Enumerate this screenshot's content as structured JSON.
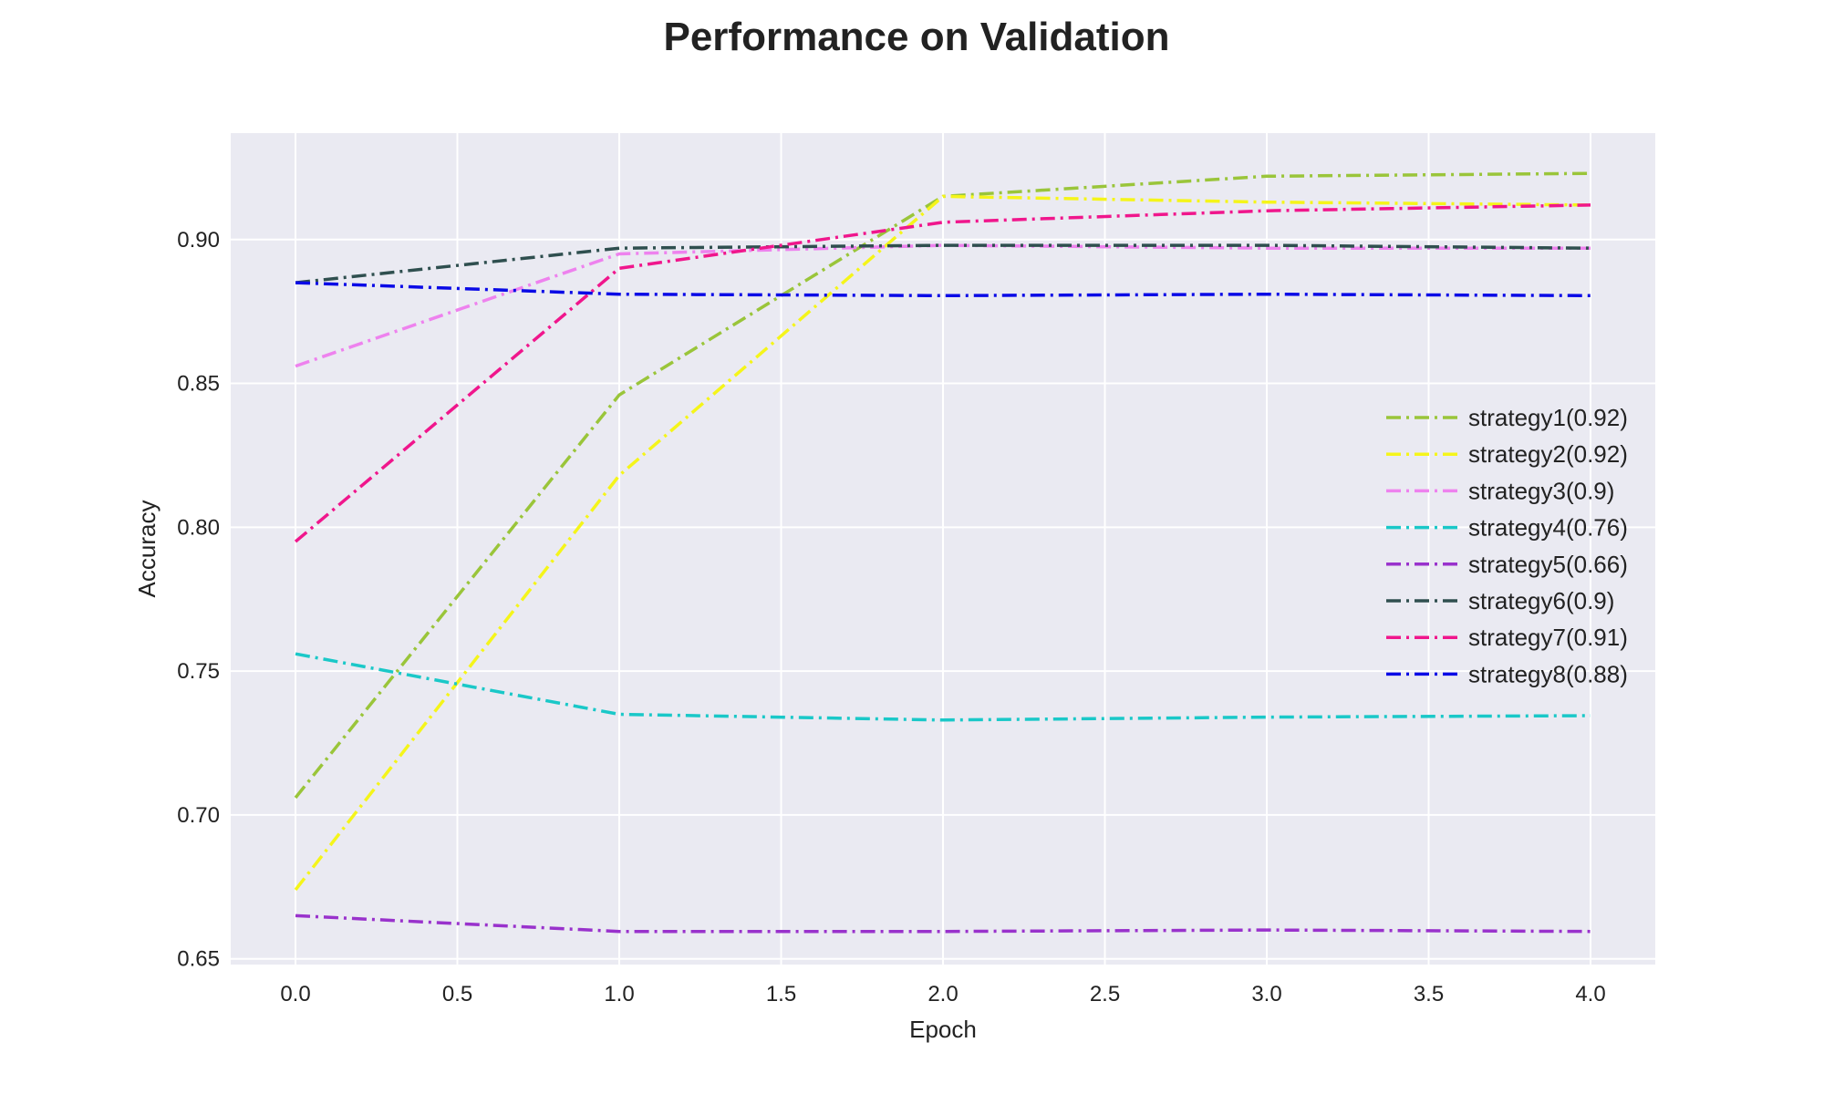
{
  "chart_data": {
    "type": "line",
    "title": "Performance on Validation",
    "xlabel": "Epoch",
    "ylabel": "Accuracy",
    "xlim": [
      -0.2,
      4.2
    ],
    "ylim": [
      0.648,
      0.937
    ],
    "x_ticks": [
      0.0,
      0.5,
      1.0,
      1.5,
      2.0,
      2.5,
      3.0,
      3.5,
      4.0
    ],
    "x_tick_labels": [
      "0.0",
      "0.5",
      "1.0",
      "1.5",
      "2.0",
      "2.5",
      "3.0",
      "3.5",
      "4.0"
    ],
    "y_ticks": [
      0.65,
      0.7,
      0.75,
      0.8,
      0.85,
      0.9
    ],
    "y_tick_labels": [
      "0.65",
      "0.70",
      "0.75",
      "0.80",
      "0.85",
      "0.90"
    ],
    "grid": true,
    "legend_position": "center-right",
    "line_style": "dash-dot",
    "background_color": "#eaeaf2",
    "grid_color": "#ffffff",
    "x": [
      0,
      1,
      2,
      3,
      4
    ],
    "series": [
      {
        "name": "strategy1(0.92)",
        "color": "#9ac53a",
        "values": [
          0.706,
          0.846,
          0.915,
          0.922,
          0.923
        ]
      },
      {
        "name": "strategy2(0.92)",
        "color": "#f5f51a",
        "values": [
          0.674,
          0.818,
          0.915,
          0.913,
          0.912
        ]
      },
      {
        "name": "strategy3(0.9)",
        "color": "#ee82ee",
        "values": [
          0.856,
          0.895,
          0.898,
          0.897,
          0.897
        ]
      },
      {
        "name": "strategy4(0.76)",
        "color": "#1ac8c8",
        "values": [
          0.756,
          0.735,
          0.733,
          0.734,
          0.7345
        ]
      },
      {
        "name": "strategy5(0.66)",
        "color": "#9932cc",
        "values": [
          0.665,
          0.6595,
          0.6595,
          0.66,
          0.6595
        ]
      },
      {
        "name": "strategy6(0.9)",
        "color": "#2f4f4f",
        "values": [
          0.885,
          0.897,
          0.898,
          0.898,
          0.897
        ]
      },
      {
        "name": "strategy7(0.91)",
        "color": "#f0168c",
        "values": [
          0.795,
          0.89,
          0.906,
          0.91,
          0.912
        ]
      },
      {
        "name": "strategy8(0.88)",
        "color": "#0a0ae6",
        "values": [
          0.885,
          0.881,
          0.8805,
          0.881,
          0.8805
        ]
      }
    ]
  }
}
